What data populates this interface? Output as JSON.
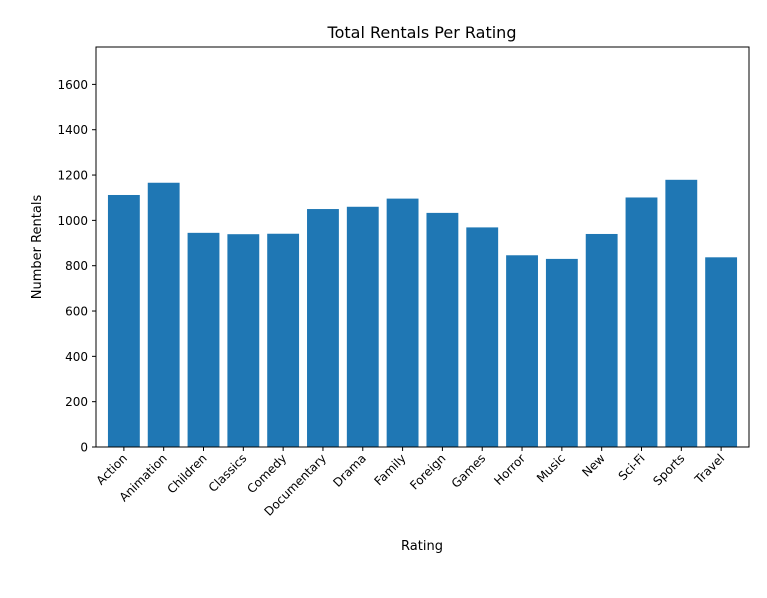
{
  "chart_data": {
    "type": "bar",
    "title": "Total Rentals Per Rating",
    "xlabel": "Rating",
    "ylabel": "Number Rentals",
    "categories": [
      "Action",
      "Animation",
      "Children",
      "Classics",
      "Comedy",
      "Documentary",
      "Drama",
      "Family",
      "Foreign",
      "Games",
      "Horror",
      "Music",
      "New",
      "Sci-Fi",
      "Sports",
      "Travel"
    ],
    "values": [
      1112,
      1166,
      945,
      939,
      941,
      1050,
      1060,
      1096,
      1033,
      969,
      846,
      830,
      940,
      1101,
      1179,
      837
    ],
    "ylim": [
      0,
      1765
    ],
    "yticks": [
      0,
      200,
      400,
      600,
      800,
      1000,
      1200,
      1400,
      1600
    ],
    "grid": false,
    "bar_color": "#1f77b4"
  }
}
